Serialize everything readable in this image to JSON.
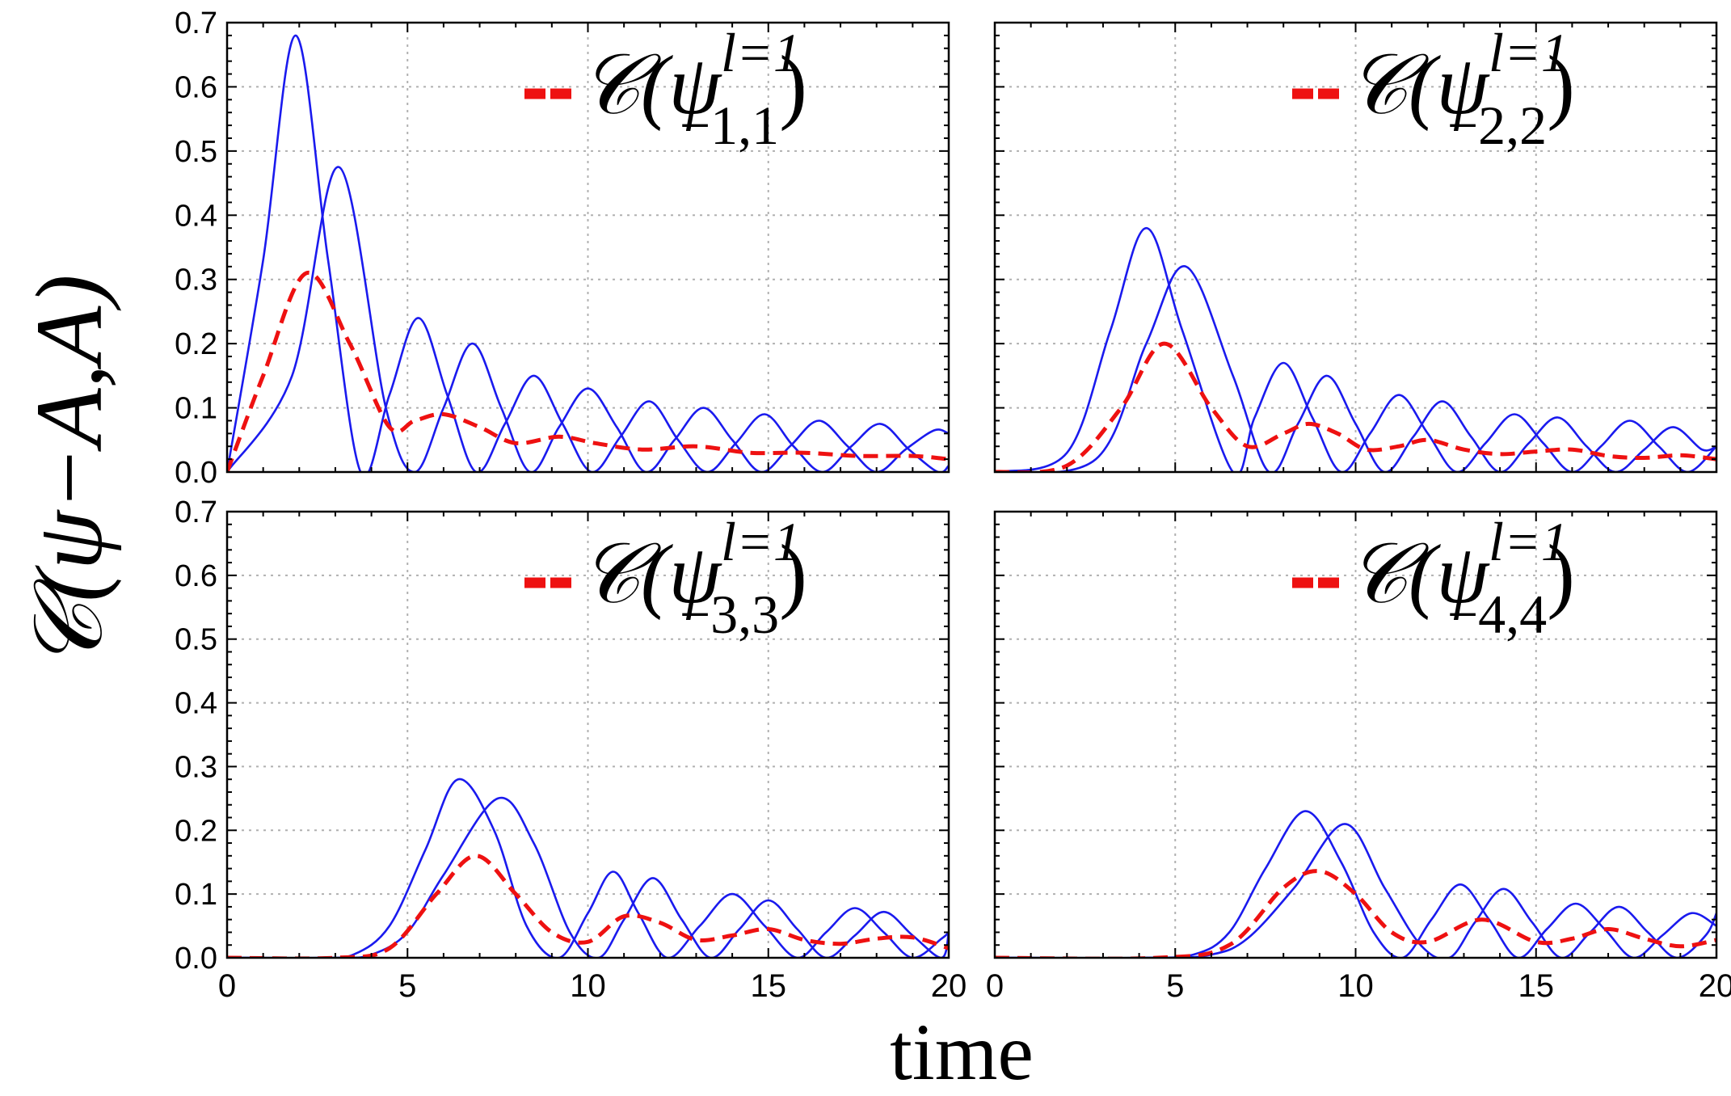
{
  "figure": {
    "ylabel": "𝒞(ψ−A,A)",
    "xlabel": "time",
    "colors": {
      "blue": "#1a1aee",
      "red": "#ee1111",
      "grid": "#b0b0b0",
      "axis": "#000000"
    }
  },
  "chart_data": [
    {
      "type": "line",
      "panel": "top-left",
      "legend": {
        "prefix": "𝒞(ψ",
        "sup": "l=1",
        "sub": "−1,1",
        "suffix": ")",
        "position": "top-right"
      },
      "xlim": [
        0,
        20
      ],
      "ylim": [
        0,
        0.7
      ],
      "xticks": [
        "0",
        "5",
        "10",
        "15",
        "20"
      ],
      "yticks": [
        "0.0",
        "0.1",
        "0.2",
        "0.3",
        "0.4",
        "0.5",
        "0.6",
        "0.7"
      ],
      "series": [
        {
          "name": "concurrence-a",
          "style": "blue-solid",
          "x": [
            0,
            1.0,
            1.9,
            2.8,
            3.7,
            4.5,
            5.3,
            6.1,
            6.9,
            7.7,
            8.5,
            9.3,
            10.1,
            10.9,
            11.7,
            12.5,
            13.3,
            14.1,
            14.9,
            15.7,
            16.5,
            17.3,
            18.1,
            18.9,
            19.7,
            20
          ],
          "y": [
            0,
            0.33,
            0.68,
            0.33,
            0,
            0.12,
            0.24,
            0.12,
            0,
            0.075,
            0.15,
            0.075,
            0,
            0.055,
            0.11,
            0.05,
            0,
            0.045,
            0.09,
            0.04,
            0,
            0.04,
            0.075,
            0.035,
            0,
            0.01
          ]
        },
        {
          "name": "concurrence-b",
          "style": "blue-solid",
          "x": [
            0,
            1.8,
            3.1,
            4.4,
            5.2,
            6.0,
            6.8,
            7.6,
            8.4,
            9.2,
            10.0,
            10.8,
            11.6,
            12.4,
            13.2,
            14.0,
            14.8,
            15.6,
            16.4,
            17.2,
            18.0,
            18.8,
            19.6,
            20
          ],
          "y": [
            0,
            0.15,
            0.475,
            0.1,
            0,
            0.1,
            0.2,
            0.1,
            0,
            0.07,
            0.13,
            0.07,
            0,
            0.05,
            0.1,
            0.05,
            0,
            0.04,
            0.08,
            0.04,
            0,
            0.035,
            0.065,
            0.06
          ]
        },
        {
          "name": "concurrence-avg",
          "style": "red-dashed",
          "x": [
            0,
            1.0,
            2.2,
            3.4,
            4.5,
            5.2,
            6.0,
            7.0,
            8.0,
            9.2,
            10.2,
            11.5,
            13.0,
            14.5,
            16.0,
            17.5,
            19.0,
            20
          ],
          "y": [
            0,
            0.15,
            0.31,
            0.2,
            0.07,
            0.08,
            0.09,
            0.07,
            0.045,
            0.055,
            0.045,
            0.035,
            0.04,
            0.03,
            0.03,
            0.025,
            0.025,
            0.02
          ]
        }
      ]
    },
    {
      "type": "line",
      "panel": "top-right",
      "legend": {
        "prefix": "𝒞(ψ",
        "sup": "l=1",
        "sub": "−2,2",
        "suffix": ")",
        "position": "top-right"
      },
      "xlim": [
        0,
        20
      ],
      "ylim": [
        0,
        0.7
      ],
      "xticks": [
        "0",
        "5",
        "10",
        "15",
        "20"
      ],
      "yticks": [],
      "series": [
        {
          "name": "concurrence-a",
          "style": "blue-solid",
          "x": [
            0,
            2.0,
            3.2,
            4.2,
            5.2,
            6.6,
            7.2,
            8.0,
            8.8,
            9.6,
            10.4,
            11.2,
            12.0,
            12.8,
            13.6,
            14.4,
            15.2,
            16.0,
            16.8,
            17.6,
            18.4,
            19.2,
            20
          ],
          "y": [
            0,
            0.03,
            0.22,
            0.38,
            0.22,
            0,
            0.085,
            0.17,
            0.085,
            0,
            0.06,
            0.12,
            0.06,
            0,
            0.045,
            0.09,
            0.045,
            0,
            0.04,
            0.08,
            0.04,
            0,
            0.04
          ]
        },
        {
          "name": "concurrence-b",
          "style": "blue-solid",
          "x": [
            0,
            2.8,
            4.2,
            5.3,
            6.6,
            7.6,
            8.4,
            9.2,
            10.0,
            10.8,
            11.6,
            12.4,
            13.2,
            14.0,
            14.8,
            15.6,
            16.4,
            17.2,
            18.0,
            18.8,
            19.6,
            20
          ],
          "y": [
            0,
            0.02,
            0.2,
            0.32,
            0.15,
            0,
            0.075,
            0.15,
            0.075,
            0,
            0.055,
            0.11,
            0.055,
            0,
            0.045,
            0.085,
            0.04,
            0,
            0.035,
            0.07,
            0.035,
            0.04
          ]
        },
        {
          "name": "concurrence-avg",
          "style": "red-dashed",
          "x": [
            0,
            2.0,
            3.5,
            4.7,
            6.0,
            7.0,
            8.0,
            8.7,
            9.5,
            10.3,
            11.2,
            12.0,
            13.0,
            14.0,
            15.0,
            16.0,
            17.0,
            18.0,
            19.0,
            20
          ],
          "y": [
            0,
            0.01,
            0.1,
            0.2,
            0.1,
            0.04,
            0.06,
            0.075,
            0.06,
            0.035,
            0.04,
            0.05,
            0.035,
            0.028,
            0.032,
            0.035,
            0.025,
            0.022,
            0.026,
            0.02
          ]
        }
      ]
    },
    {
      "type": "line",
      "panel": "bottom-left",
      "legend": {
        "prefix": "𝒞(ψ",
        "sup": "l=1",
        "sub": "−3,3",
        "suffix": ")",
        "position": "top-right"
      },
      "xlim": [
        0,
        20
      ],
      "ylim": [
        0,
        0.7
      ],
      "xticks": [
        "0",
        "5",
        "10",
        "15",
        "20"
      ],
      "yticks": [
        "0.0",
        "0.1",
        "0.2",
        "0.3",
        "0.4",
        "0.5",
        "0.6",
        "0.7"
      ],
      "series": [
        {
          "name": "concurrence-a",
          "style": "blue-solid",
          "x": [
            0,
            2.5,
            3.5,
            4.5,
            5.5,
            6.4,
            7.4,
            8.3,
            9.2,
            10.0,
            10.7,
            11.4,
            12.2,
            13.1,
            14.0,
            14.9,
            15.8,
            16.6,
            17.4,
            18.2,
            19.0,
            19.8,
            20
          ],
          "y": [
            0,
            0,
            0.005,
            0.05,
            0.17,
            0.28,
            0.2,
            0.05,
            0,
            0.07,
            0.135,
            0.07,
            0,
            0.05,
            0.1,
            0.05,
            0,
            0.04,
            0.078,
            0.04,
            0,
            0.03,
            0.04
          ]
        },
        {
          "name": "concurrence-b",
          "style": "blue-solid",
          "x": [
            0,
            3.0,
            4.0,
            5.0,
            6.0,
            7.5,
            8.5,
            9.5,
            10.3,
            11.0,
            11.8,
            12.6,
            13.4,
            14.2,
            15.0,
            15.8,
            16.6,
            17.4,
            18.2,
            19.0,
            19.8,
            20
          ],
          "y": [
            0,
            0,
            0.005,
            0.04,
            0.13,
            0.25,
            0.18,
            0.04,
            0,
            0.06,
            0.125,
            0.06,
            0,
            0.045,
            0.09,
            0.045,
            0,
            0.035,
            0.072,
            0.035,
            0,
            0.04
          ]
        },
        {
          "name": "concurrence-avg",
          "style": "red-dashed",
          "x": [
            0,
            3.0,
            4.5,
            5.8,
            6.9,
            8.0,
            9.0,
            10.0,
            11.0,
            12.0,
            13.0,
            14.0,
            15.0,
            16.0,
            17.0,
            18.0,
            19.0,
            20
          ],
          "y": [
            0,
            0,
            0.015,
            0.1,
            0.16,
            0.1,
            0.04,
            0.025,
            0.065,
            0.055,
            0.028,
            0.035,
            0.045,
            0.028,
            0.022,
            0.03,
            0.032,
            0.015
          ]
        }
      ]
    },
    {
      "type": "line",
      "panel": "bottom-right",
      "legend": {
        "prefix": "𝒞(ψ",
        "sup": "l=1",
        "sub": "−4,4",
        "suffix": ")",
        "position": "top-right"
      },
      "xlim": [
        0,
        20
      ],
      "ylim": [
        0,
        0.7
      ],
      "xticks": [
        "0",
        "5",
        "10",
        "15",
        "20"
      ],
      "yticks": [],
      "series": [
        {
          "name": "concurrence-a",
          "style": "blue-solid",
          "x": [
            0,
            4.0,
            5.5,
            6.5,
            7.5,
            8.6,
            9.6,
            10.5,
            11.3,
            12.1,
            12.9,
            13.7,
            14.5,
            15.3,
            16.1,
            16.9,
            17.7,
            18.5,
            19.3,
            20
          ],
          "y": [
            0,
            0,
            0.005,
            0.04,
            0.14,
            0.23,
            0.15,
            0.04,
            0,
            0.06,
            0.115,
            0.06,
            0,
            0.045,
            0.085,
            0.045,
            0,
            0.035,
            0.07,
            0.05
          ]
        },
        {
          "name": "concurrence-b",
          "style": "blue-solid",
          "x": [
            0,
            4.5,
            6.0,
            7.0,
            8.3,
            9.7,
            10.8,
            11.8,
            12.6,
            13.3,
            14.1,
            14.9,
            15.7,
            16.5,
            17.3,
            18.1,
            18.9,
            19.7,
            20
          ],
          "y": [
            0,
            0,
            0.005,
            0.03,
            0.11,
            0.21,
            0.11,
            0.02,
            0,
            0.055,
            0.108,
            0.055,
            0,
            0.04,
            0.08,
            0.04,
            0,
            0.035,
            0.07
          ]
        },
        {
          "name": "concurrence-avg",
          "style": "red-dashed",
          "x": [
            0,
            4.5,
            6.5,
            8.0,
            9.0,
            10.0,
            11.0,
            12.0,
            13.5,
            15.0,
            16.0,
            17.0,
            18.0,
            19.0,
            20
          ],
          "y": [
            0,
            0,
            0.02,
            0.11,
            0.136,
            0.1,
            0.04,
            0.025,
            0.06,
            0.025,
            0.03,
            0.045,
            0.03,
            0.018,
            0.028
          ]
        }
      ]
    }
  ]
}
